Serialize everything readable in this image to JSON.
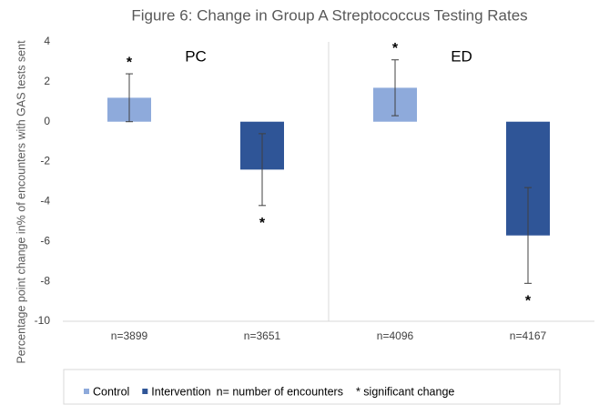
{
  "chart_data": {
    "type": "bar",
    "title": "Figure 6: Change in Group A Streptococcus Testing Rates",
    "ylabel": "Percentage point change in% of encounters with GAS tests sent",
    "categories": [
      "n=3899",
      "n=3651",
      "n=4096",
      "n=4167"
    ],
    "group_labels": [
      "PC",
      "ED"
    ],
    "series": [
      {
        "name": "Control",
        "color": "#8eaadb",
        "values": [
          1.2,
          null,
          1.7,
          null
        ],
        "errors": [
          1.2,
          null,
          1.4,
          null
        ],
        "markers": [
          "*",
          null,
          "*",
          null
        ]
      },
      {
        "name": "Intervention",
        "color": "#2f5597",
        "values": [
          null,
          -2.4,
          null,
          -5.7
        ],
        "errors": [
          null,
          1.8,
          null,
          2.4
        ],
        "markers": [
          null,
          "*",
          null,
          "*"
        ]
      }
    ],
    "legend_notes": [
      "n= number of encounters",
      "* significant change"
    ],
    "ylim": [
      -10,
      4
    ],
    "yticks": [
      -10,
      -8,
      -6,
      -4,
      -2,
      0,
      2,
      4
    ],
    "grid": false
  }
}
